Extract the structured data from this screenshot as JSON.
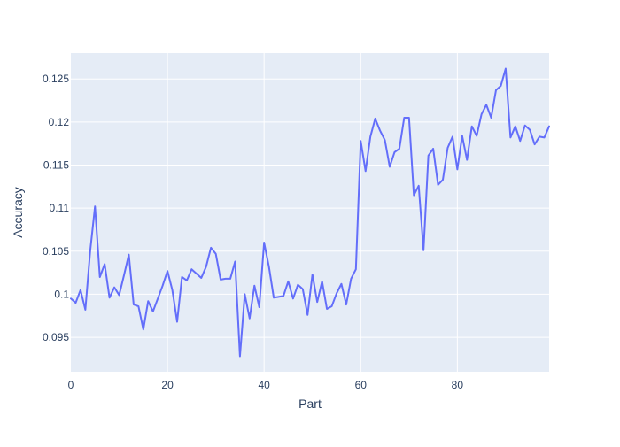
{
  "chart_data": {
    "type": "line",
    "title": "",
    "xlabel": "Part",
    "ylabel": "Accuracy",
    "xlim": [
      0,
      99
    ],
    "ylim": [
      0.091,
      0.128
    ],
    "grid": true,
    "x_ticks": [
      {
        "value": 0,
        "label": "0"
      },
      {
        "value": 20,
        "label": "20"
      },
      {
        "value": 40,
        "label": "40"
      },
      {
        "value": 60,
        "label": "60"
      },
      {
        "value": 80,
        "label": "80"
      }
    ],
    "y_ticks": [
      {
        "value": 0.095,
        "label": "0.095"
      },
      {
        "value": 0.1,
        "label": "0.1"
      },
      {
        "value": 0.105,
        "label": "0.105"
      },
      {
        "value": 0.11,
        "label": "0.11"
      },
      {
        "value": 0.115,
        "label": "0.115"
      },
      {
        "value": 0.12,
        "label": "0.12"
      },
      {
        "value": 0.125,
        "label": "0.125"
      }
    ],
    "colors": {
      "plot_background": "#e5ecf6",
      "grid": "#ffffff",
      "line": "#636efa",
      "text": "#2a3f5f"
    },
    "series": [
      {
        "x": [
          0,
          1,
          2,
          3,
          4,
          5,
          6,
          7,
          8,
          9,
          10,
          11,
          12,
          13,
          14,
          15,
          16,
          17,
          18,
          19,
          20,
          21,
          22,
          23,
          24,
          25,
          26,
          27,
          28,
          29,
          30,
          31,
          32,
          33,
          34,
          35,
          36,
          37,
          38,
          39,
          40,
          41,
          42,
          43,
          44,
          45,
          46,
          47,
          48,
          49,
          50,
          51,
          52,
          53,
          54,
          55,
          56,
          57,
          58,
          59,
          60,
          61,
          62,
          63,
          64,
          65,
          66,
          67,
          68,
          69,
          70,
          71,
          72,
          73,
          74,
          75,
          76,
          77,
          78,
          79,
          80,
          81,
          82,
          83,
          84,
          85,
          86,
          87,
          88,
          89,
          90,
          91,
          92,
          93,
          94,
          95,
          96,
          97,
          98,
          99
        ],
        "values": [
          0.0995,
          0.099,
          0.1005,
          0.0982,
          0.105,
          0.1102,
          0.102,
          0.1035,
          0.0996,
          0.1008,
          0.0999,
          0.1022,
          0.1046,
          0.0988,
          0.0986,
          0.0959,
          0.0992,
          0.098,
          0.0995,
          0.101,
          0.1027,
          0.1005,
          0.0968,
          0.102,
          0.1016,
          0.1029,
          0.1024,
          0.1019,
          0.1032,
          0.1054,
          0.1047,
          0.1017,
          0.1018,
          0.1018,
          0.1038,
          0.0928,
          0.1,
          0.0972,
          0.101,
          0.0985,
          0.106,
          0.1032,
          0.0996,
          0.0997,
          0.0998,
          0.1015,
          0.0995,
          0.1011,
          0.1006,
          0.0976,
          0.1023,
          0.0991,
          0.1015,
          0.0983,
          0.0986,
          0.1001,
          0.1012,
          0.0988,
          0.1018,
          0.1029,
          0.1178,
          0.1143,
          0.1183,
          0.1204,
          0.119,
          0.1179,
          0.1148,
          0.1165,
          0.1169,
          0.1205,
          0.1205,
          0.1115,
          0.1126,
          0.1051,
          0.1161,
          0.1169,
          0.1127,
          0.1133,
          0.117,
          0.1183,
          0.1145,
          0.1184,
          0.1156,
          0.1195,
          0.1184,
          0.1209,
          0.122,
          0.1205,
          0.1237,
          0.1242,
          0.1262,
          0.1182,
          0.1195,
          0.1178,
          0.1196,
          0.1191,
          0.1174,
          0.1183,
          0.1182,
          0.1195
        ]
      }
    ]
  }
}
